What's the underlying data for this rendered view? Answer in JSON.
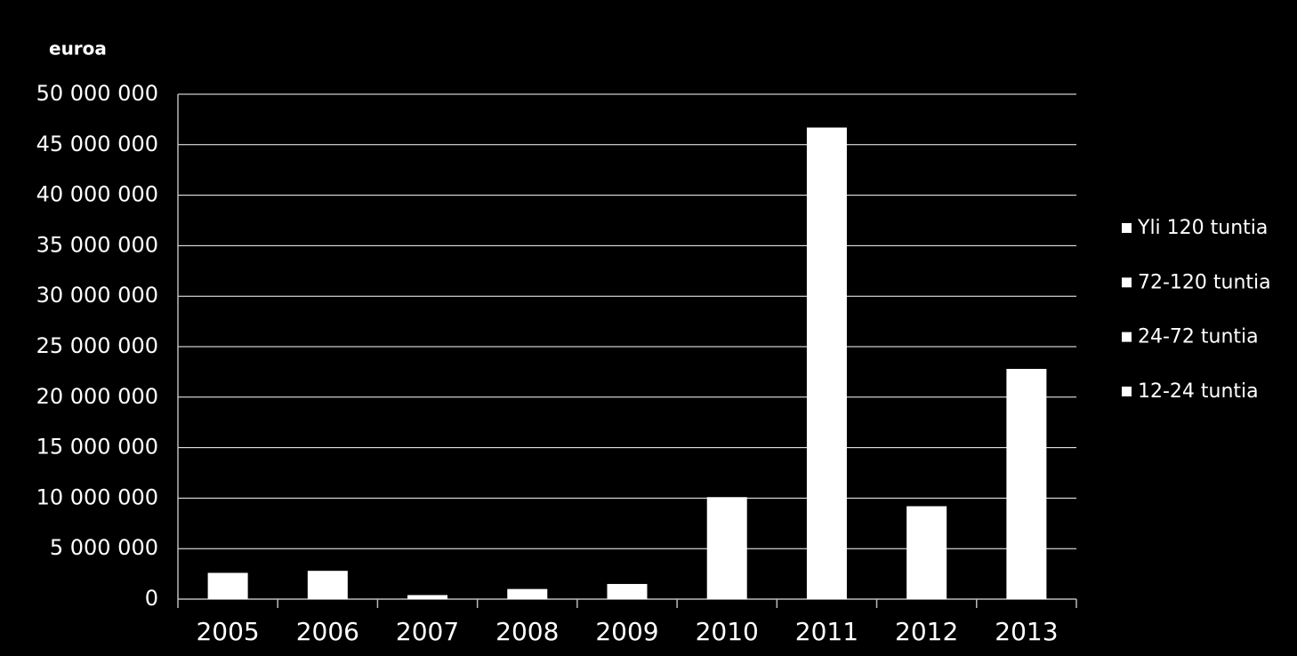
{
  "chart_data": {
    "type": "stacked-bar",
    "y_axis_label": "euroa",
    "categories": [
      "2005",
      "2006",
      "2007",
      "2008",
      "2009",
      "2010",
      "2011",
      "2012",
      "2013"
    ],
    "series": [
      {
        "name": "12-24 tuntia",
        "color": "#ffffff",
        "values": [
          2600000,
          2800000,
          400000,
          1000000,
          1500000,
          10100000,
          46700000,
          9200000,
          22800000
        ]
      },
      {
        "name": "24-72 tuntia",
        "color": "#ffffff",
        "values": [
          0,
          0,
          0,
          0,
          0,
          0,
          0,
          0,
          0
        ]
      },
      {
        "name": "72-120 tuntia",
        "color": "#ffffff",
        "values": [
          0,
          0,
          0,
          0,
          0,
          0,
          0,
          0,
          0
        ]
      },
      {
        "name": "Yli 120 tuntia",
        "color": "#ffffff",
        "values": [
          0,
          0,
          0,
          0,
          0,
          0,
          0,
          0,
          0
        ]
      }
    ],
    "ylim": [
      0,
      50000000
    ],
    "yticks": [
      0,
      {
        "value": 5000000,
        "label": "5 000 000"
      },
      {
        "value": 10000000,
        "label": "10 000 000"
      },
      {
        "value": 15000000,
        "label": "15 000 000"
      },
      {
        "value": 20000000,
        "label": "20 000 000"
      },
      {
        "value": 25000000,
        "label": "25 000 000"
      },
      {
        "value": 30000000,
        "label": "30 000 000"
      },
      {
        "value": 35000000,
        "label": "35 000 000"
      },
      {
        "value": 40000000,
        "label": "40 000 000"
      },
      {
        "value": 45000000,
        "label": "45 000 000"
      },
      {
        "value": 50000000,
        "label": "50 000 000"
      }
    ],
    "grid": true,
    "legend": "right"
  }
}
